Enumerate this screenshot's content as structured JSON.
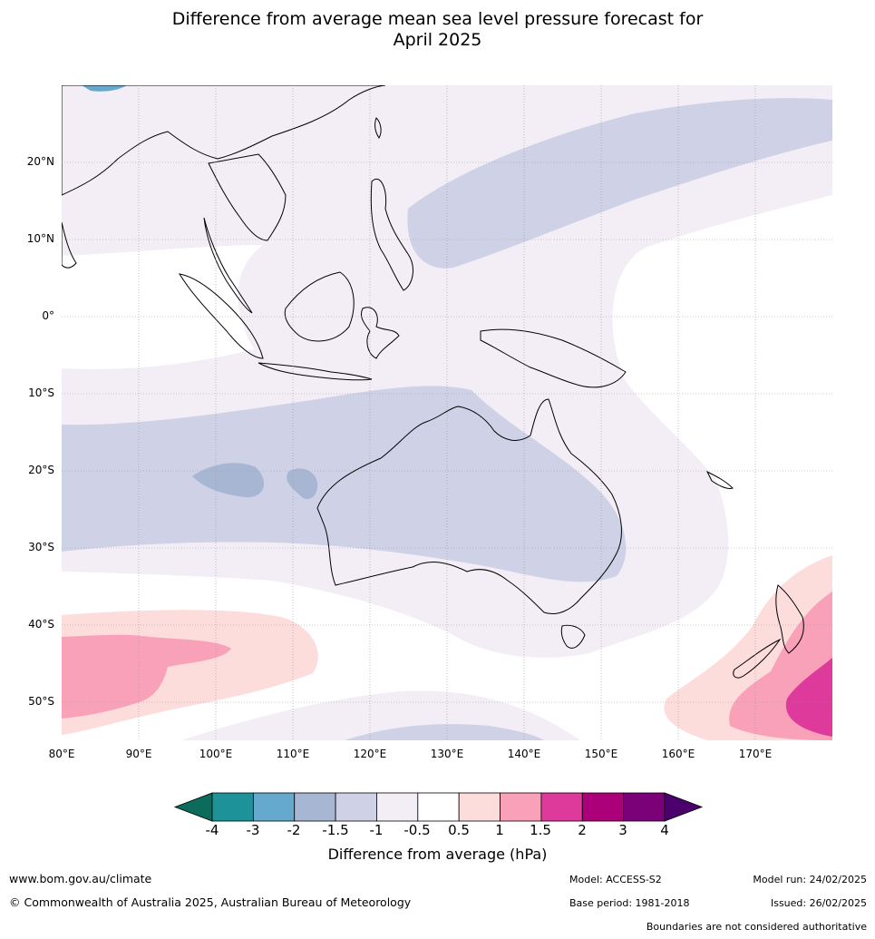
{
  "title_line1": "Difference from average mean sea level pressure forecast for",
  "title_line2": "April 2025",
  "lat_labels": [
    "20°N",
    "10°N",
    "0°",
    "10°S",
    "20°S",
    "30°S",
    "40°S",
    "50°S"
  ],
  "lon_labels": [
    "80°E",
    "90°E",
    "100°E",
    "110°E",
    "120°E",
    "130°E",
    "140°E",
    "150°E",
    "160°E",
    "170°E"
  ],
  "colorbar": {
    "ticks": [
      "-4",
      "-3",
      "-2",
      "-1.5",
      "-1",
      "-0.5",
      "0.5",
      "1",
      "1.5",
      "2",
      "3",
      "4"
    ],
    "colors": [
      "#0d6b5b",
      "#1e9299",
      "#66a9cf",
      "#a7b7d3",
      "#cfd1e6",
      "#f3eef6",
      "#ffffff",
      "#fddcdc",
      "#f8a1b8",
      "#dd3a9c",
      "#ac007b",
      "#7a0177",
      "#4b006e"
    ],
    "label": "Difference from average (hPa)"
  },
  "footer": {
    "website": "www.bom.gov.au/climate",
    "copyright": "© Commonwealth of Australia 2025, Australian Bureau of Meteorology",
    "model": "Model: ACCESS-S2",
    "base_period": "Base period: 1981-2018",
    "model_run": "Model run: 24/02/2025",
    "issued": "Issued: 26/02/2025",
    "disclaimer": "Boundaries are not considered authoritative"
  }
}
